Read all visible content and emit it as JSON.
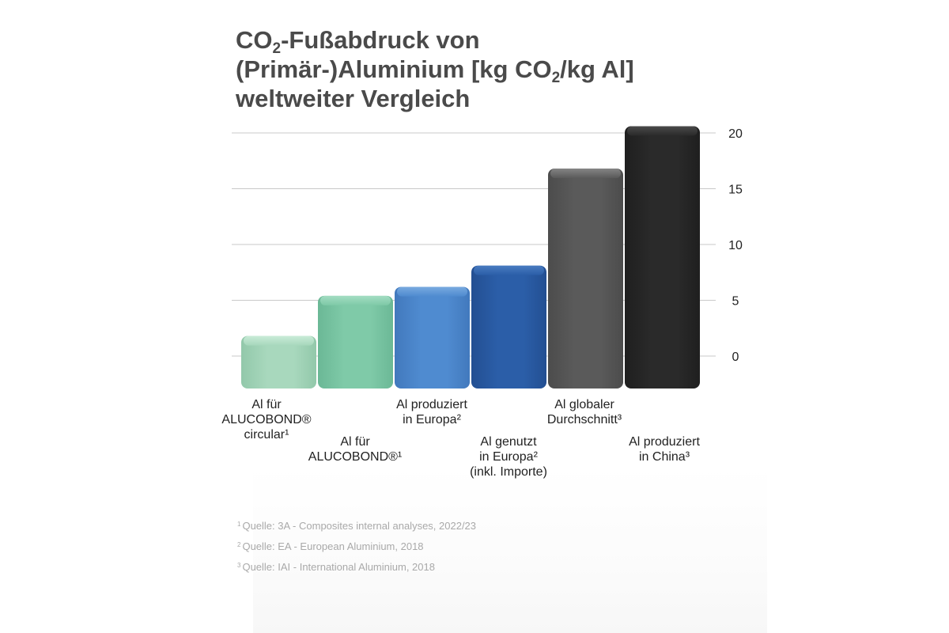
{
  "title": {
    "line1_prefix": "CO",
    "line1_sub": "2",
    "line1_suffix": "-Fußabdruck von",
    "line2_prefix": "(Primär-)Aluminium [kg CO",
    "line2_sub": "2",
    "line2_suffix": "/kg Al]",
    "line3": "weltweiter Vergleich"
  },
  "chart_data": {
    "type": "bar",
    "categories": [
      [
        "Al für",
        "ALUCOBOND®",
        "circular¹"
      ],
      [
        "Al für",
        "ALUCOBOND®¹"
      ],
      [
        "Al produziert",
        "in Europa²"
      ],
      [
        "Al genutzt",
        "in Europa²",
        "(inkl. Importe)"
      ],
      [
        "Al globaler",
        "Durchschnitt³"
      ],
      [
        "Al produziert",
        "in China³"
      ]
    ],
    "values": [
      1.8,
      5.4,
      6.2,
      8.1,
      16.8,
      20.6
    ],
    "colors": [
      [
        "#a8d8bd",
        "#cdeedb",
        "#92c8aa"
      ],
      [
        "#7fcaa8",
        "#a8e0c6",
        "#6bb896"
      ],
      [
        "#4f8bd0",
        "#7eaee2",
        "#4279bd"
      ],
      [
        "#2b5ea8",
        "#4c7fc4",
        "#234f92"
      ],
      [
        "#5a5a5a",
        "#8a8a8a",
        "#4c4c4c"
      ],
      [
        "#2a2a2a",
        "#4e4e4e",
        "#1f1f1f"
      ]
    ],
    "yticks": [
      0,
      5,
      10,
      15,
      20
    ],
    "ylim": [
      0,
      20
    ],
    "axis_position": "right",
    "grid": true
  },
  "footnotes": [
    {
      "mark": "1",
      "text": "Quelle: 3A - Composites internal analyses, 2022/23"
    },
    {
      "mark": "2",
      "text": "Quelle: EA - European Aluminium, 2018"
    },
    {
      "mark": "3",
      "text": "Quelle: IAI - International Aluminium, 2018"
    }
  ]
}
